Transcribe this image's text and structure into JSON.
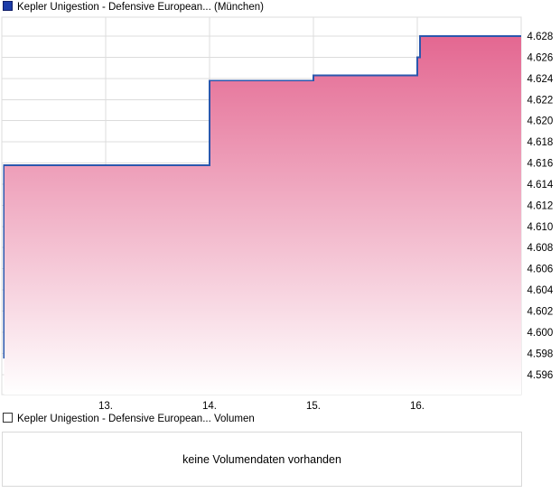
{
  "price_chart": {
    "legend_label": "Kepler Unigestion - Defensive European... (München)",
    "marker_color": "#1c3ca8"
  },
  "volume_panel": {
    "legend_label": "Kepler Unigestion - Defensive European... Volumen",
    "no_data_message": "keine Volumendaten vorhanden"
  },
  "chart_data": {
    "type": "area",
    "title": "Kepler Unigestion - Defensive European... (München)",
    "xlabel": "",
    "ylabel": "",
    "grid": true,
    "legend_position": "top-left",
    "xlim": [
      12,
      17
    ],
    "ylim": [
      4.5941,
      4.6298
    ],
    "x_tick_labels": [
      "13.",
      "14.",
      "15.",
      "16."
    ],
    "x_tick_positions": [
      13,
      14,
      15,
      16
    ],
    "y_tick_values": [
      4.596,
      4.598,
      4.6,
      4.602,
      4.604,
      4.606,
      4.608,
      4.61,
      4.612,
      4.614,
      4.616,
      4.618,
      4.62,
      4.622,
      4.624,
      4.626,
      4.628
    ],
    "y_tick_labels": [
      "4.596",
      "4.598",
      "4.600",
      "4.602",
      "4.604",
      "4.606",
      "4.608",
      "4.610",
      "4.612",
      "4.614",
      "4.616",
      "4.618",
      "4.620",
      "4.622",
      "4.624",
      "4.626",
      "4.628"
    ],
    "series": [
      {
        "name": "Kepler Unigestion - Defensive European... (München)",
        "style": "step-area",
        "points": [
          [
            12.02,
            4.5975
          ],
          [
            12.02,
            4.6158
          ],
          [
            14.0,
            4.6158
          ],
          [
            14.0,
            4.6238
          ],
          [
            15.0,
            4.6238
          ],
          [
            15.0,
            4.6243
          ],
          [
            16.0,
            4.6243
          ],
          [
            16.0,
            4.626
          ],
          [
            16.025,
            4.626
          ],
          [
            16.025,
            4.628
          ],
          [
            17.0,
            4.628
          ]
        ]
      }
    ],
    "colors": {
      "line": "#2b57ad",
      "fill_top": "#e25f8b",
      "fill_bottom": "#ffffff",
      "grid": "#dcdcdc",
      "axis_text": "#000000"
    }
  }
}
